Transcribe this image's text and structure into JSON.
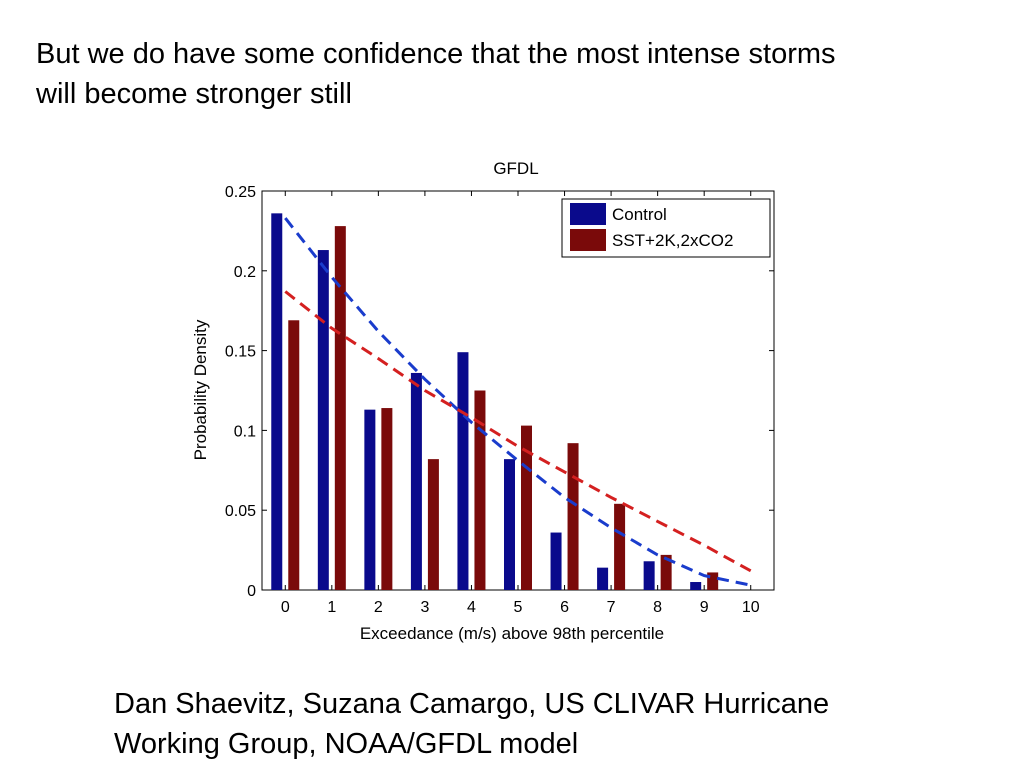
{
  "slide": {
    "heading_line1": "But we do have some confidence that the most intense storms",
    "heading_line2": "will become stronger still",
    "credit_line1": "Dan Shaevitz, Suzana Camargo, US CLIVAR Hurricane",
    "credit_line2": "Working Group, NOAA/GFDL model"
  },
  "chart_data": {
    "type": "bar",
    "title": "GFDL",
    "xlabel": "Exceedance (m/s) above 98th percentile",
    "ylabel": "Probability Density",
    "xlim": [
      -0.5,
      10.5
    ],
    "ylim": [
      0,
      0.25
    ],
    "x_ticks": [
      "0",
      "1",
      "2",
      "3",
      "4",
      "5",
      "6",
      "7",
      "8",
      "9",
      "10"
    ],
    "y_ticks": [
      "0",
      "0.05",
      "0.1",
      "0.15",
      "0.2",
      "0.25"
    ],
    "categories": [
      0,
      1,
      2,
      3,
      4,
      5,
      6,
      7,
      8,
      9
    ],
    "series": [
      {
        "name": "Control",
        "color": "#0a0a8c",
        "values": [
          0.236,
          0.213,
          0.113,
          0.136,
          0.149,
          0.082,
          0.036,
          0.014,
          0.018,
          0.005
        ]
      },
      {
        "name": "SST+2K,2xCO2",
        "color": "#7a0a0a",
        "values": [
          0.169,
          0.228,
          0.114,
          0.082,
          0.125,
          0.103,
          0.092,
          0.054,
          0.022,
          0.011
        ]
      }
    ],
    "fit_curves": [
      {
        "series": "Control",
        "color": "#1a3ccc",
        "style": "dashed",
        "x": [
          0,
          1,
          2,
          3,
          4,
          5,
          6,
          7,
          8,
          9,
          10
        ],
        "y": [
          0.233,
          0.196,
          0.162,
          0.132,
          0.105,
          0.081,
          0.058,
          0.039,
          0.022,
          0.009,
          0.003
        ]
      },
      {
        "series": "SST+2K,2xCO2",
        "color": "#d42020",
        "style": "dashed",
        "x": [
          0,
          1,
          2,
          3,
          4,
          5,
          6,
          7,
          8,
          9,
          10
        ],
        "y": [
          0.187,
          0.164,
          0.145,
          0.125,
          0.108,
          0.09,
          0.074,
          0.058,
          0.043,
          0.028,
          0.012
        ]
      }
    ],
    "legend": "top-right",
    "grid": false
  }
}
